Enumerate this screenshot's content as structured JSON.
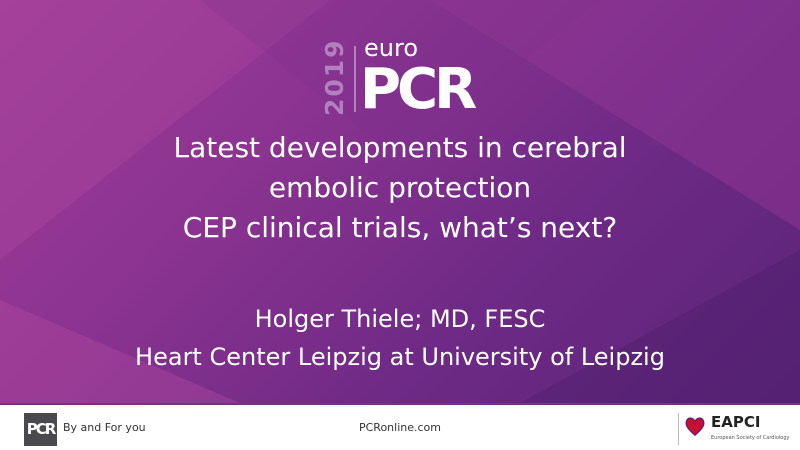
{
  "logo": {
    "year": "2019",
    "euro": "euro",
    "pcr": "PCR"
  },
  "title": {
    "lines": [
      "Latest developments in cerebral",
      "embolic protection",
      "CEP clinical trials, what’s next?"
    ]
  },
  "author": {
    "name": "Holger Thiele; MD, FESC",
    "affiliation": "Heart Center Leipzig at University of Leipzig"
  },
  "footer": {
    "pcr_logo": "PCR",
    "tagline": "By and For you",
    "url": "PCRonline.com",
    "eapci": "EAPCI",
    "esc": "European Society of Cardiology"
  },
  "colors": {
    "background": "#8a3390",
    "accent": "#b27fbf",
    "footer_logo": "#4a4a4e",
    "heart": "#c8102e"
  }
}
